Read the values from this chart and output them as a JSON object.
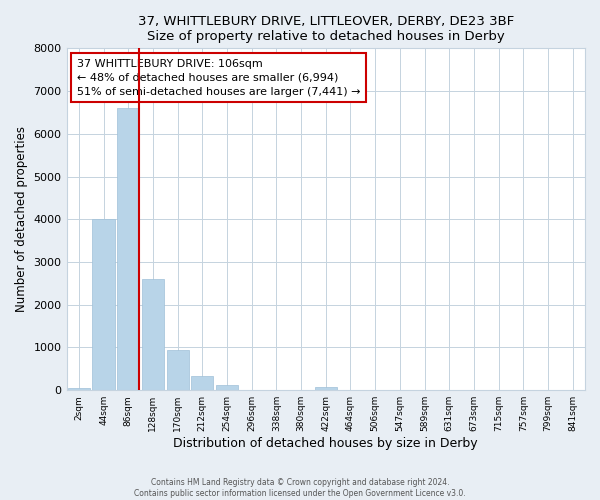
{
  "title": "37, WHITTLEBURY DRIVE, LITTLEOVER, DERBY, DE23 3BF",
  "subtitle": "Size of property relative to detached houses in Derby",
  "xlabel": "Distribution of detached houses by size in Derby",
  "ylabel": "Number of detached properties",
  "bin_labels": [
    "2sqm",
    "44sqm",
    "86sqm",
    "128sqm",
    "170sqm",
    "212sqm",
    "254sqm",
    "296sqm",
    "338sqm",
    "380sqm",
    "422sqm",
    "464sqm",
    "506sqm",
    "547sqm",
    "589sqm",
    "631sqm",
    "673sqm",
    "715sqm",
    "757sqm",
    "799sqm",
    "841sqm"
  ],
  "bar_values": [
    50,
    4000,
    6600,
    2600,
    950,
    330,
    130,
    0,
    0,
    0,
    80,
    0,
    0,
    0,
    0,
    0,
    0,
    0,
    0,
    0,
    0
  ],
  "bar_color": "#b8d4e8",
  "bar_edge_color": "#a0c0d8",
  "vline_color": "#cc0000",
  "annotation_title": "37 WHITTLEBURY DRIVE: 106sqm",
  "annotation_line1": "← 48% of detached houses are smaller (6,994)",
  "annotation_line2": "51% of semi-detached houses are larger (7,441) →",
  "ylim": [
    0,
    8000
  ],
  "yticks": [
    0,
    1000,
    2000,
    3000,
    4000,
    5000,
    6000,
    7000,
    8000
  ],
  "footer1": "Contains HM Land Registry data © Crown copyright and database right 2024.",
  "footer2": "Contains public sector information licensed under the Open Government Licence v3.0.",
  "bg_color": "#e8eef4",
  "plot_bg_color": "#ffffff",
  "grid_color": "#c5d3df"
}
